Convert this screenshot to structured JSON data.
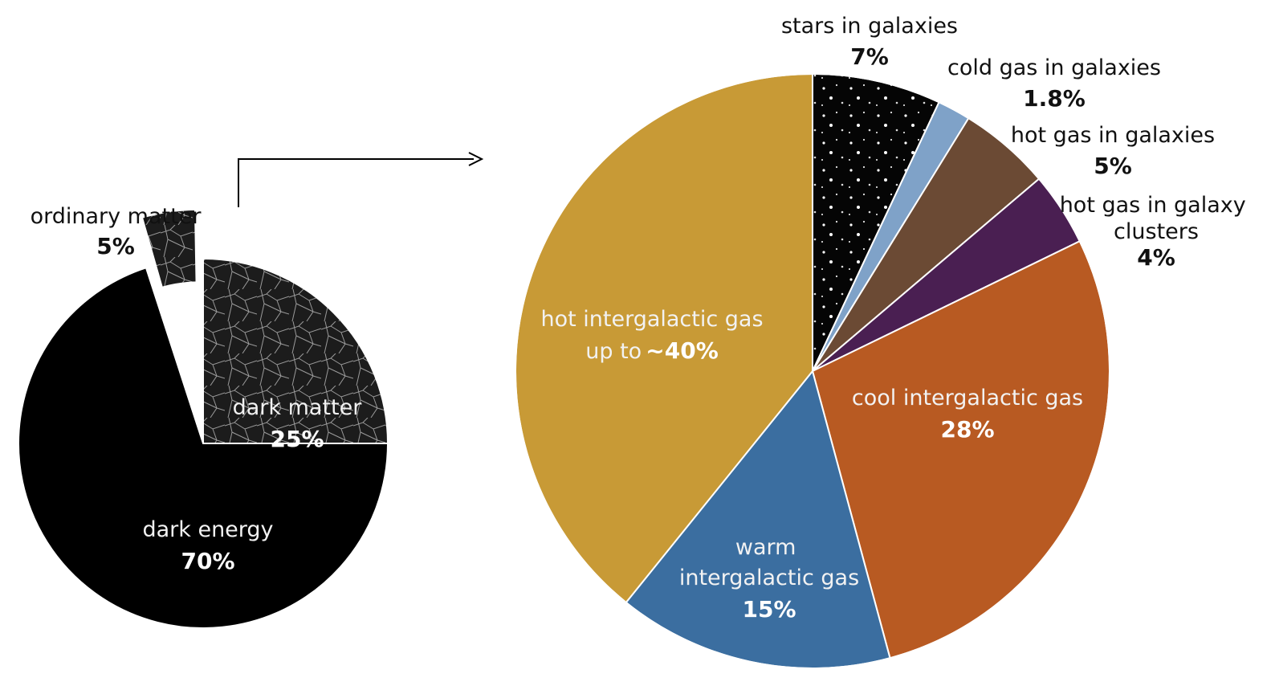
{
  "chart_data": [
    {
      "type": "pie",
      "title": "",
      "slices": [
        {
          "label": "dark energy",
          "value_text": "70%",
          "value": 70,
          "color": "#000000"
        },
        {
          "label": "dark matter",
          "value_text": "25%",
          "value": 25,
          "color": "#2b2b2b"
        },
        {
          "label": "ordinary matter",
          "value_text": "5%",
          "value": 5,
          "color": "#1a1a1a",
          "exploded": true
        }
      ]
    },
    {
      "type": "pie",
      "title": "",
      "slices": [
        {
          "label": "stars in galaxies",
          "value_text": "7%",
          "value": 7,
          "color": "#050505"
        },
        {
          "label": "cold gas in galaxies",
          "value_text": "1.8%",
          "value": 1.8,
          "color": "#7fa2c8"
        },
        {
          "label": "hot gas in galaxies",
          "value_text": "5%",
          "value": 5,
          "color": "#6b4a34"
        },
        {
          "label": "hot gas in galaxy clusters",
          "value_text": "4%",
          "value": 4,
          "color": "#4a1f52"
        },
        {
          "label": "cool intergalactic gas",
          "value_text": "28%",
          "value": 28,
          "color": "#b85a22"
        },
        {
          "label": "warm intergalactic gas",
          "value_text": "15%",
          "value": 15,
          "color": "#3b6ea0"
        },
        {
          "label": "hot intergalactic gas",
          "value_text": "~40%",
          "value_prefix": "up to",
          "value": 39.2,
          "color": "#c89a36"
        }
      ]
    }
  ],
  "colors": {
    "slice_border": "#ffffff",
    "arrow": "#000000"
  }
}
